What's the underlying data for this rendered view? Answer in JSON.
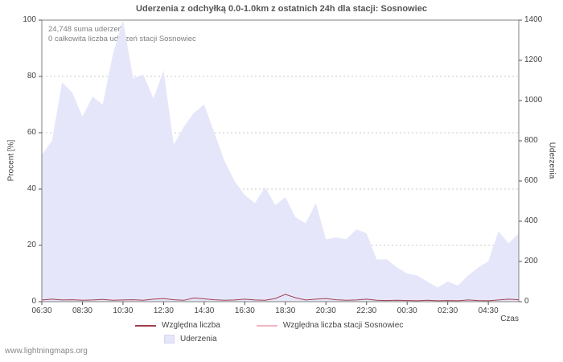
{
  "title": "Uderzenia z odchyłką 0.0-1.0km z ostatnich 24h dla stacji: Sosnowiec",
  "annotations": {
    "sum": "24,748 suma uderzeń",
    "station": "0 całkowita liczba uderzeń stacji Sosnowiec"
  },
  "axes": {
    "y_left_label": "Procent  [%]",
    "y_right_label": "Uderzenia",
    "x_label": "Czas"
  },
  "legend": [
    {
      "label": "Względna liczba",
      "color": "#a04050",
      "type": "line"
    },
    {
      "label": "Względna liczba stacji Sosnowiec",
      "color": "#f4b4c4",
      "type": "line"
    },
    {
      "label": "Uderzenia",
      "color": "#e6e6fa",
      "type": "area"
    }
  ],
  "footer": "www.lightningmaps.org",
  "chart_data": {
    "type": "area",
    "title": "Uderzenia z odchyłką 0.0-1.0km z ostatnich 24h dla stacji: Sosnowiec",
    "xlabel": "Czas",
    "ylabel_left": "Procent [%]",
    "ylabel_right": "Uderzenia",
    "ylim_left": [
      0,
      100
    ],
    "ylim_right": [
      0,
      1400
    ],
    "y_ticks_left": [
      0,
      20,
      40,
      60,
      80,
      100
    ],
    "y_ticks_right": [
      0,
      200,
      400,
      600,
      800,
      1000,
      1200,
      1400
    ],
    "x_ticks": [
      "06:30",
      "08:30",
      "10:30",
      "12:30",
      "14:30",
      "16:30",
      "18:30",
      "20:30",
      "22:30",
      "00:30",
      "02:30",
      "04:30"
    ],
    "x_start": "06:30",
    "x_interval_minutes": 30,
    "grid": true,
    "legend_position": "bottom",
    "series": [
      {
        "name": "Uderzenia",
        "type": "area",
        "axis": "right",
        "color": "#e6e6fa",
        "values": [
          730,
          800,
          1090,
          1040,
          920,
          1020,
          980,
          1230,
          1400,
          1110,
          1130,
          1010,
          1150,
          780,
          870,
          940,
          980,
          840,
          700,
          600,
          530,
          490,
          570,
          480,
          520,
          420,
          390,
          490,
          310,
          320,
          310,
          360,
          340,
          210,
          210,
          170,
          140,
          130,
          100,
          70,
          100,
          80,
          130,
          170,
          200,
          350,
          290,
          340
        ]
      },
      {
        "name": "Względna liczba stacji Sosnowiec",
        "type": "line",
        "axis": "left",
        "color": "#f4b4c4",
        "values": [
          0,
          0,
          0,
          0,
          0,
          0,
          0,
          0,
          0,
          0,
          0,
          0,
          0,
          0,
          0,
          0,
          0,
          0,
          0,
          0,
          0,
          0,
          0,
          0,
          0,
          0,
          0,
          0,
          0,
          0,
          0,
          0,
          0,
          0,
          0,
          0,
          0,
          0,
          0,
          0,
          0,
          0,
          0,
          0,
          0,
          0,
          0,
          0
        ]
      },
      {
        "name": "Względna liczba",
        "type": "line",
        "axis": "left",
        "color": "#a04050",
        "values": [
          0.6,
          0.9,
          0.6,
          0.7,
          0.5,
          0.6,
          0.8,
          0.5,
          0.6,
          0.7,
          0.5,
          0.9,
          1.1,
          0.7,
          0.5,
          1.3,
          1.0,
          0.7,
          0.5,
          0.6,
          0.9,
          0.6,
          0.5,
          1.1,
          2.6,
          1.4,
          0.6,
          0.9,
          1.1,
          0.7,
          0.5,
          0.6,
          0.9,
          0.5,
          0.4,
          0.5,
          0.4,
          0.3,
          0.5,
          0.3,
          0.4,
          0.3,
          0.6,
          0.4,
          0.3,
          0.6,
          0.9,
          0.7
        ]
      }
    ]
  }
}
